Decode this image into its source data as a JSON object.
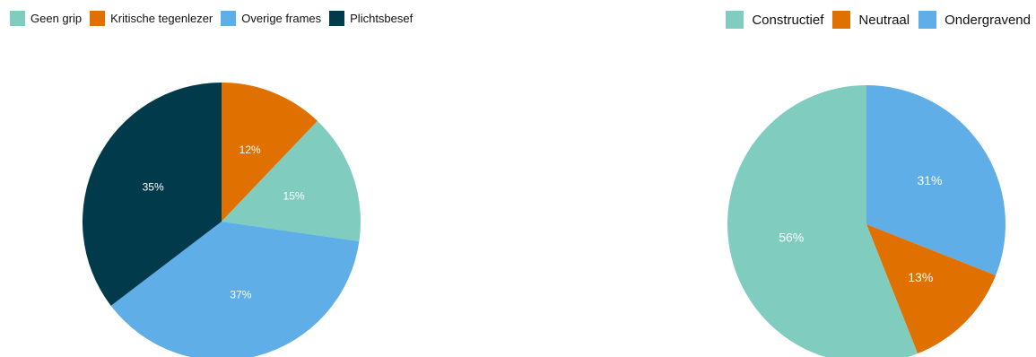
{
  "chart_data": [
    {
      "type": "pie",
      "title": "",
      "legend": "top-left",
      "categories": [
        "Geen grip",
        "Kritische tegenlezer",
        "Overige frames",
        "Plichtsbesef"
      ],
      "colors": [
        "#80cdbf",
        "#e07000",
        "#5faee8",
        "#013a4b"
      ],
      "slices": [
        {
          "name": "Kritische tegenlezer",
          "value": 12,
          "label": "12%"
        },
        {
          "name": "Geen grip",
          "value": 15,
          "label": "15%"
        },
        {
          "name": "Overige frames",
          "value": 37,
          "label": "37%"
        },
        {
          "name": "Plichtsbesef",
          "value": 35,
          "label": "35%"
        }
      ]
    },
    {
      "type": "pie",
      "title": "",
      "legend": "top-right",
      "categories": [
        "Constructief",
        "Neutraal",
        "Ondergravend"
      ],
      "colors": [
        "#80cdbf",
        "#e07000",
        "#5faee8"
      ],
      "slices": [
        {
          "name": "Ondergravend",
          "value": 31,
          "label": "31%"
        },
        {
          "name": "Neutraal",
          "value": 13,
          "label": "13%"
        },
        {
          "name": "Constructief",
          "value": 56,
          "label": "56%"
        }
      ]
    }
  ]
}
